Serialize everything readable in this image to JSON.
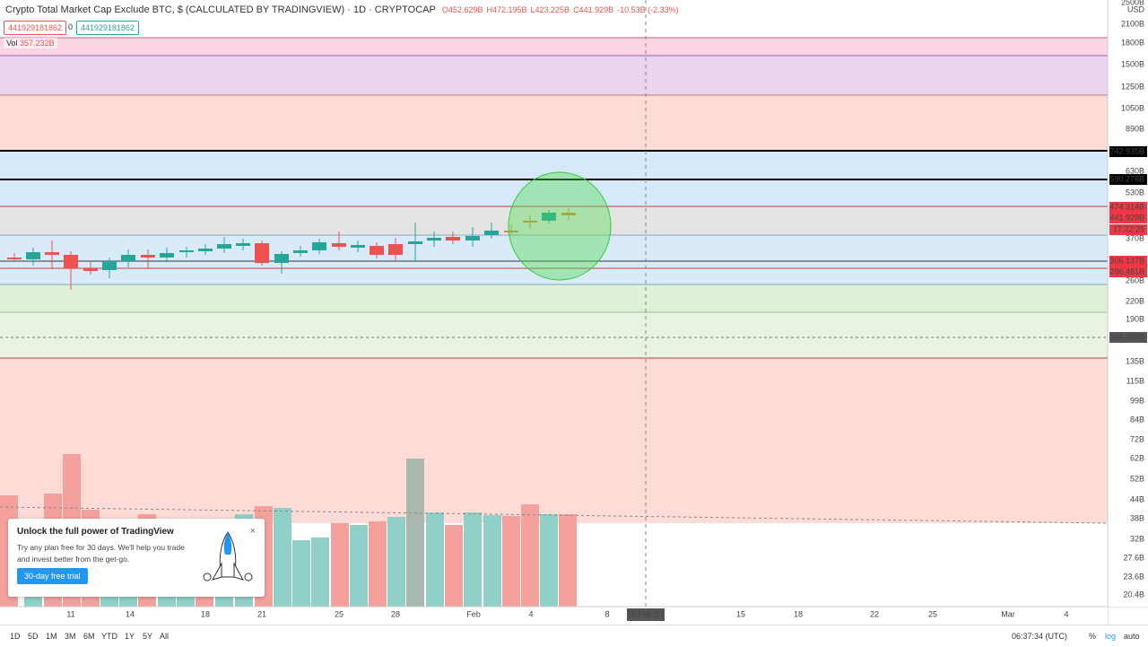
{
  "header": {
    "title": "Crypto Total Market Cap Exclude BTC, $ (CALCULATED BY TRADINGVIEW) · 1D · CRYPTOCAP",
    "ohlc": {
      "open": "O452.629B",
      "high": "H472.195B",
      "low": "L423.225B",
      "close": "C441.929B",
      "change": "-10.53B (-2.33%)"
    },
    "inputs": [
      "441929181862",
      "0",
      "441929181862"
    ],
    "volume": {
      "label": "Vol",
      "value": "357.232B"
    }
  },
  "price_axis": {
    "currency": "USD",
    "labels": [
      "2500B",
      "2100B",
      "1800B",
      "1500B",
      "1250B",
      "1050B",
      "890B",
      "742.935B",
      "630B",
      "590.278B",
      "530B",
      "474.314B",
      "441.929B",
      "17:22:25",
      "370B",
      "306.137B",
      "286.481B",
      "260B",
      "220B",
      "190B",
      "164.405B",
      "135B",
      "115B",
      "99B",
      "84B",
      "72B",
      "62B",
      "52B",
      "44B",
      "38B",
      "32B",
      "27.6B",
      "23.6B",
      "20.4B"
    ]
  },
  "time_axis": {
    "labels": [
      "11",
      "14",
      "18",
      "21",
      "25",
      "28",
      "Feb",
      "4",
      "8",
      "10 Feb '21",
      "15",
      "18",
      "22",
      "25",
      "Mar",
      "4"
    ]
  },
  "toolbar": {
    "ranges": [
      "1D",
      "5D",
      "1M",
      "3M",
      "6M",
      "YTD",
      "1Y",
      "5Y",
      "All"
    ],
    "clock": "06:37:34 (UTC)",
    "options": [
      "%",
      "log",
      "auto"
    ]
  },
  "popup": {
    "title": "Unlock the full power of TradingView",
    "body": "Try any plan free for 30 days. We'll help you trade and invest better from the get-go.",
    "button": "30-day free trial"
  }
}
